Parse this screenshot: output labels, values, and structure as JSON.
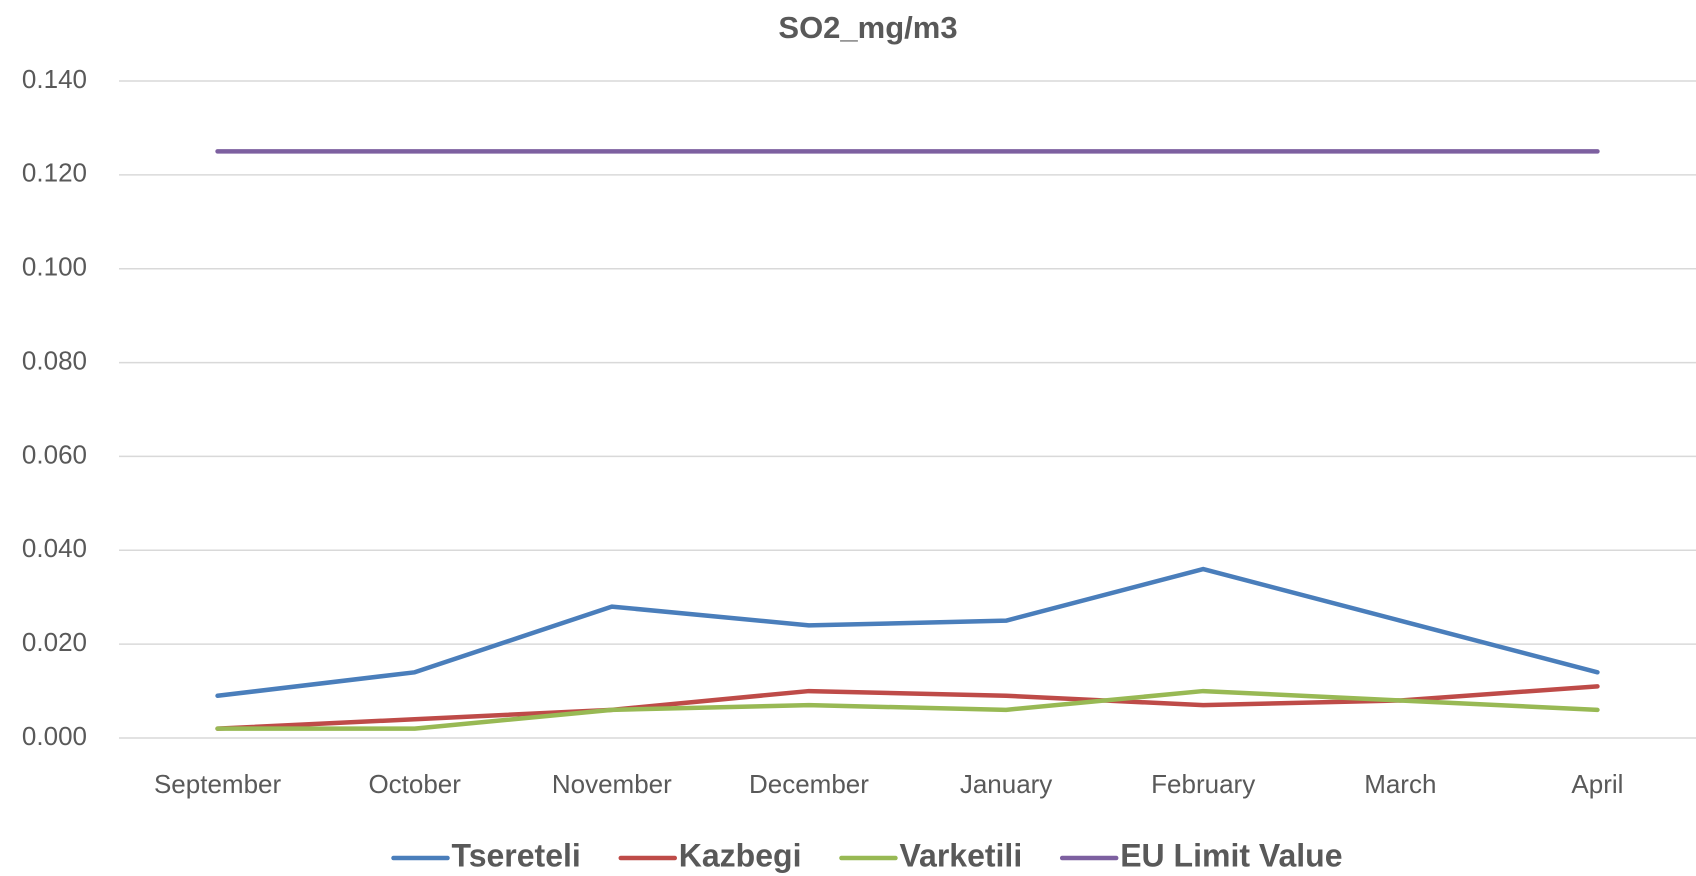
{
  "chart_data": {
    "type": "line",
    "title": "SO2_mg/m3",
    "categories": [
      "September",
      "October",
      "November",
      "December",
      "January",
      "February",
      "March",
      "April"
    ],
    "series": [
      {
        "name": "Tsereteli",
        "color": "#4a7ebb",
        "values": [
          0.009,
          0.014,
          0.028,
          0.024,
          0.025,
          0.036,
          0.025,
          0.014
        ]
      },
      {
        "name": "Kazbegi",
        "color": "#be4b48",
        "values": [
          0.002,
          0.004,
          0.006,
          0.01,
          0.009,
          0.007,
          0.008,
          0.011
        ]
      },
      {
        "name": "Varketili",
        "color": "#98b954",
        "values": [
          0.002,
          0.002,
          0.006,
          0.007,
          0.006,
          0.01,
          0.008,
          0.006
        ]
      },
      {
        "name": "EU Limit Value",
        "color": "#7d60a0",
        "values": [
          0.125,
          0.125,
          0.125,
          0.125,
          0.125,
          0.125,
          0.125,
          0.125
        ]
      }
    ],
    "ylim": [
      0,
      0.14
    ],
    "yticks": [
      {
        "value": 0,
        "label": "0.000"
      },
      {
        "value": 0.02,
        "label": "0.020"
      },
      {
        "value": 0.04,
        "label": "0.040"
      },
      {
        "value": 0.06,
        "label": "0.060"
      },
      {
        "value": 0.08,
        "label": "0.080"
      },
      {
        "value": 0.1,
        "label": "0.100"
      },
      {
        "value": 0.12,
        "label": "0.120"
      },
      {
        "value": 0.14,
        "label": "0.140"
      }
    ],
    "grid": true,
    "legend": "bottom"
  }
}
